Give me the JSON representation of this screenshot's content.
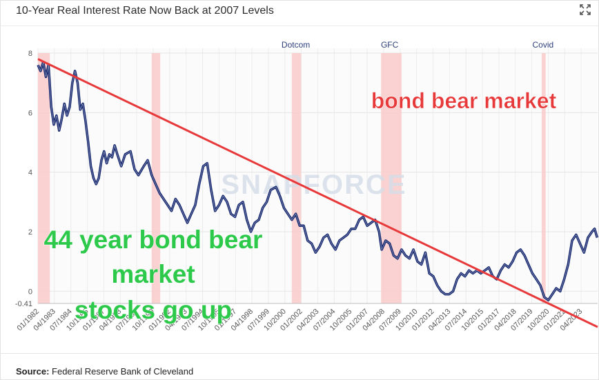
{
  "header": {
    "title": "10-Year Real Interest Rate Now Back at 2007 Levels",
    "expand_icon": "expand-arrows-icon"
  },
  "footer": {
    "source_label": "Source:",
    "source_text": "Federal Reserve Bank of Cleveland"
  },
  "watermark": "SNAPFORCE",
  "annotations": {
    "top_right": "bond bear market",
    "left_line1": "44 year bond bear",
    "left_line2": "market",
    "left_line3": "stocks go up"
  },
  "colors": {
    "series": "#14266e",
    "trend": "#e8393a",
    "recession": "#f9caca",
    "annotation_red": "#e8393a",
    "annotation_green": "#2cc94a"
  },
  "chart_data": {
    "type": "line",
    "ylim": [
      -0.41,
      8
    ],
    "yticks": [
      8,
      6,
      4,
      2,
      0,
      -0.41
    ],
    "xlim": [
      1982.0,
      2024.33
    ],
    "xtick_labels": [
      "01/1982",
      "04/1983",
      "07/1984",
      "10/1985",
      "01/1987",
      "04/1988",
      "07/1989",
      "10/1990",
      "01/1992",
      "04/1993",
      "07/1994",
      "10/1995",
      "01/1997",
      "04/1998",
      "07/1999",
      "10/2000",
      "01/2002",
      "04/2003",
      "07/2004",
      "10/2005",
      "01/2007",
      "04/2008",
      "07/2009",
      "10/2010",
      "01/2012",
      "04/2013",
      "07/2014",
      "10/2015",
      "01/2017",
      "04/2018",
      "07/2019",
      "10/2020",
      "01/2022",
      "04/2023"
    ],
    "recession_labels": [
      {
        "name": "Dotcom",
        "x": 2001.5
      },
      {
        "name": "GFC",
        "x": 2008.6
      },
      {
        "name": "Covid",
        "x": 2020.2
      }
    ],
    "recessions": [
      [
        1982.0,
        1982.9
      ],
      [
        1990.6,
        1991.25
      ],
      [
        2001.2,
        2001.9
      ],
      [
        2007.95,
        2009.5
      ],
      [
        2020.1,
        2020.4
      ]
    ],
    "trendline": {
      "x": [
        1982.0,
        2024.33
      ],
      "y": [
        7.8,
        -1.2
      ]
    },
    "series": [
      {
        "x": [
          1982.0,
          1982.2,
          1982.4,
          1982.6,
          1982.8,
          1983.0,
          1983.2,
          1983.4,
          1983.6,
          1983.8,
          1984.0,
          1984.2,
          1984.4,
          1984.6,
          1984.8,
          1985.0,
          1985.2,
          1985.4,
          1985.6,
          1985.8,
          1986.0,
          1986.2,
          1986.4,
          1986.6,
          1986.8,
          1987.0,
          1987.2,
          1987.4,
          1987.6,
          1987.8,
          1988.0,
          1988.3,
          1988.6,
          1989.0,
          1989.3,
          1989.6,
          1990.0,
          1990.3,
          1990.6,
          1990.9,
          1991.2,
          1991.5,
          1991.8,
          1992.1,
          1992.4,
          1992.7,
          1993.0,
          1993.3,
          1993.6,
          1993.9,
          1994.2,
          1994.5,
          1994.8,
          1995.1,
          1995.4,
          1995.7,
          1996.0,
          1996.3,
          1996.6,
          1996.9,
          1997.2,
          1997.5,
          1997.8,
          1998.1,
          1998.4,
          1998.7,
          1999.0,
          1999.3,
          1999.6,
          2000.0,
          2000.3,
          2000.6,
          2000.9,
          2001.2,
          2001.5,
          2001.8,
          2002.1,
          2002.4,
          2002.7,
          2003.0,
          2003.3,
          2003.6,
          2003.9,
          2004.2,
          2004.5,
          2004.8,
          2005.1,
          2005.4,
          2005.7,
          2006.0,
          2006.3,
          2006.6,
          2006.9,
          2007.2,
          2007.5,
          2007.8,
          2008.0,
          2008.3,
          2008.6,
          2008.9,
          2009.2,
          2009.5,
          2009.8,
          2010.1,
          2010.4,
          2010.7,
          2011.0,
          2011.3,
          2011.6,
          2011.9,
          2012.2,
          2012.5,
          2012.8,
          2013.1,
          2013.4,
          2013.7,
          2014.0,
          2014.3,
          2014.6,
          2014.9,
          2015.2,
          2015.5,
          2015.8,
          2016.1,
          2016.4,
          2016.7,
          2017.0,
          2017.3,
          2017.6,
          2017.9,
          2018.2,
          2018.5,
          2018.8,
          2019.1,
          2019.4,
          2019.7,
          2020.0,
          2020.3,
          2020.6,
          2020.9,
          2021.2,
          2021.5,
          2021.8,
          2022.1,
          2022.4,
          2022.7,
          2023.0,
          2023.3,
          2023.6,
          2023.9,
          2024.1,
          2024.3
        ],
        "y": [
          7.6,
          7.4,
          7.7,
          7.2,
          7.6,
          6.2,
          5.6,
          5.9,
          5.4,
          5.8,
          6.3,
          5.9,
          6.2,
          7.0,
          7.4,
          7.0,
          6.1,
          6.3,
          5.7,
          5.0,
          4.2,
          3.8,
          3.6,
          3.8,
          4.4,
          4.7,
          4.3,
          4.6,
          4.5,
          4.9,
          4.6,
          4.2,
          4.6,
          4.7,
          4.1,
          3.9,
          4.2,
          4.4,
          3.9,
          3.6,
          3.3,
          3.1,
          2.9,
          2.7,
          3.1,
          2.9,
          2.6,
          2.3,
          2.6,
          2.9,
          3.6,
          4.2,
          4.3,
          3.4,
          2.7,
          2.9,
          3.2,
          3.0,
          2.6,
          2.5,
          2.9,
          3.0,
          2.4,
          2.0,
          2.3,
          2.4,
          2.8,
          3.0,
          3.4,
          3.5,
          3.2,
          2.8,
          2.6,
          2.4,
          2.6,
          2.2,
          2.2,
          1.7,
          1.6,
          1.3,
          1.5,
          1.8,
          1.9,
          1.6,
          1.4,
          1.7,
          1.8,
          1.9,
          2.1,
          2.1,
          2.4,
          2.5,
          2.2,
          2.3,
          2.4,
          2.0,
          1.4,
          1.7,
          1.6,
          1.2,
          1.1,
          1.4,
          1.2,
          1.1,
          1.4,
          1.0,
          0.9,
          1.3,
          0.6,
          0.5,
          0.2,
          0.0,
          -0.1,
          -0.1,
          0.0,
          0.4,
          0.6,
          0.5,
          0.7,
          0.6,
          0.7,
          0.6,
          0.7,
          0.8,
          0.5,
          0.4,
          0.7,
          0.9,
          0.8,
          1.0,
          1.3,
          1.4,
          1.2,
          0.9,
          0.6,
          0.4,
          0.2,
          -0.2,
          -0.3,
          -0.1,
          0.1,
          0.0,
          0.4,
          0.9,
          1.7,
          1.9,
          1.6,
          1.3,
          1.8,
          2.0,
          2.1,
          1.8
        ]
      }
    ]
  }
}
